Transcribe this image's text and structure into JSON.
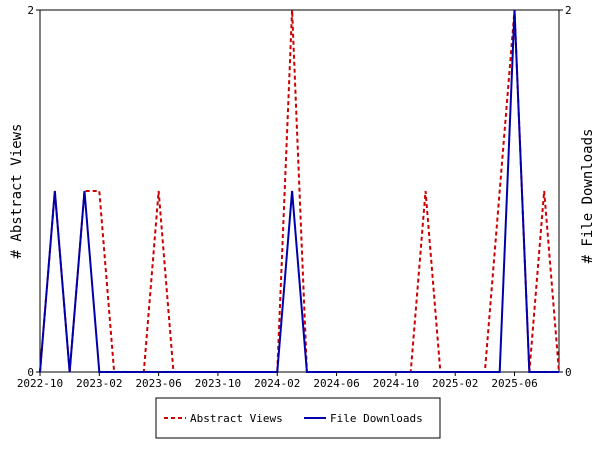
{
  "chart_data": {
    "type": "line",
    "x": [
      "2022-10",
      "2022-11",
      "2022-12",
      "2023-01",
      "2023-02",
      "2023-03",
      "2023-04",
      "2023-05",
      "2023-06",
      "2023-07",
      "2023-08",
      "2023-09",
      "2023-10",
      "2023-11",
      "2023-12",
      "2024-01",
      "2024-02",
      "2024-03",
      "2024-04",
      "2024-05",
      "2024-06",
      "2024-07",
      "2024-08",
      "2024-09",
      "2024-10",
      "2024-11",
      "2024-12",
      "2025-01",
      "2025-02",
      "2025-03",
      "2025-04",
      "2025-05",
      "2025-06",
      "2025-07",
      "2025-08",
      "2025-09"
    ],
    "x_ticks": [
      "2022-10",
      "2023-02",
      "2023-06",
      "2023-10",
      "2024-02",
      "2024-06",
      "2024-10",
      "2025-02",
      "2025-06"
    ],
    "ylabel_left": "# Abstract Views",
    "ylabel_right": "# File Downloads",
    "ylim_left": [
      0,
      2
    ],
    "ylim_right": [
      0,
      2
    ],
    "y_ticks_left": [
      "0",
      "2"
    ],
    "y_ticks_right": [
      "0",
      "2"
    ],
    "grid": false,
    "legend_position": "bottom",
    "series": [
      {
        "name": "Abstract Views",
        "axis": "left",
        "color": "#cc0000",
        "dash": "dashed",
        "values": [
          0,
          1,
          0,
          1,
          1,
          0,
          0,
          0,
          1,
          0,
          0,
          0,
          0,
          0,
          0,
          0,
          0,
          2,
          0,
          0,
          0,
          0,
          0,
          0,
          0,
          0,
          1,
          0,
          0,
          0,
          0,
          1,
          2,
          0,
          1,
          0
        ]
      },
      {
        "name": "File Downloads",
        "axis": "right",
        "color": "#0000aa",
        "dash": "solid",
        "values": [
          0,
          1,
          0,
          1,
          0,
          0,
          0,
          0,
          0,
          0,
          0,
          0,
          0,
          0,
          0,
          0,
          0,
          1,
          0,
          0,
          0,
          0,
          0,
          0,
          0,
          0,
          0,
          0,
          0,
          0,
          0,
          0,
          2,
          0,
          0,
          0
        ]
      }
    ]
  }
}
